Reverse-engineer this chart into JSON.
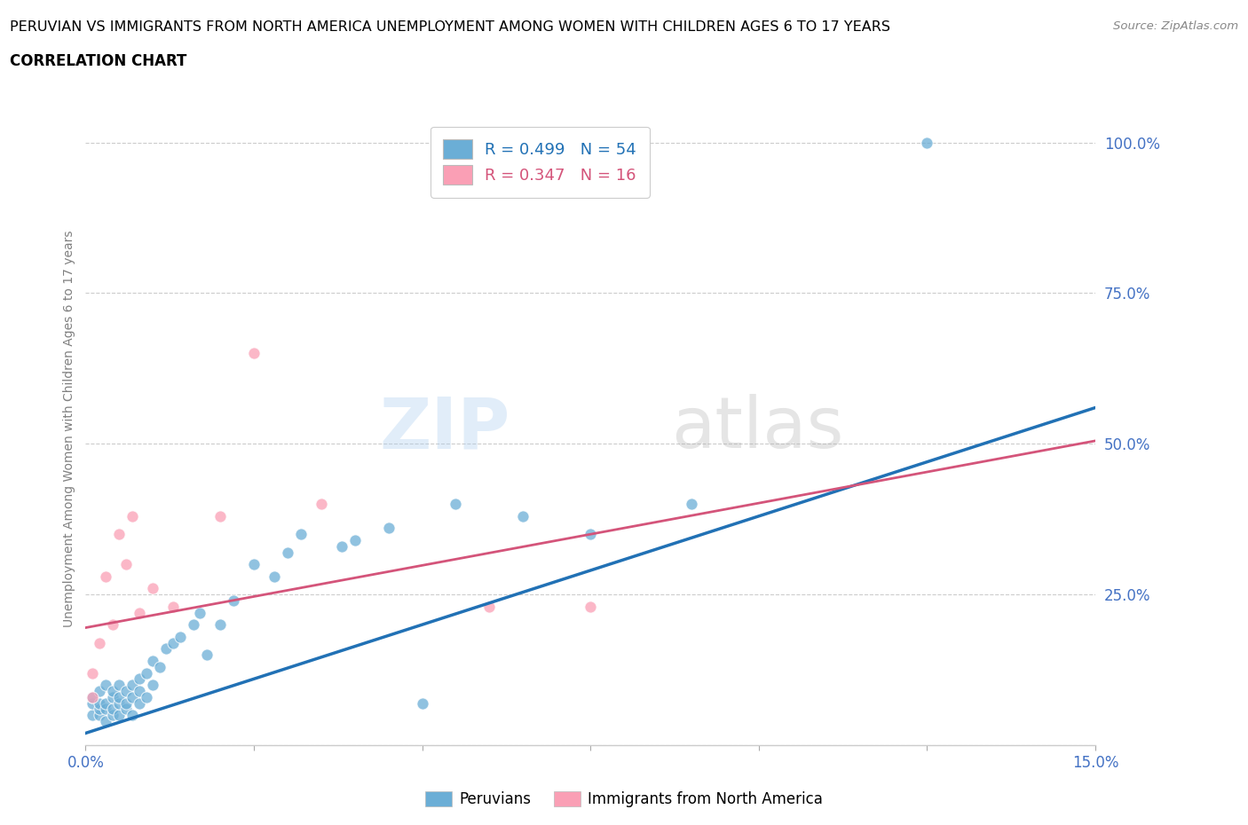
{
  "title_line1": "PERUVIAN VS IMMIGRANTS FROM NORTH AMERICA UNEMPLOYMENT AMONG WOMEN WITH CHILDREN AGES 6 TO 17 YEARS",
  "title_line2": "CORRELATION CHART",
  "source": "Source: ZipAtlas.com",
  "ylabel": "Unemployment Among Women with Children Ages 6 to 17 years",
  "xlim": [
    0.0,
    0.15
  ],
  "ylim": [
    0.0,
    1.05
  ],
  "xticks": [
    0.0,
    0.025,
    0.05,
    0.075,
    0.1,
    0.125,
    0.15
  ],
  "xtick_labels": [
    "0.0%",
    "",
    "",
    "",
    "",
    "",
    "15.0%"
  ],
  "yticks": [
    0.0,
    0.25,
    0.5,
    0.75,
    1.0
  ],
  "ytick_labels": [
    "",
    "25.0%",
    "50.0%",
    "75.0%",
    "100.0%"
  ],
  "blue_color": "#6baed6",
  "pink_color": "#fa9fb5",
  "blue_line_color": "#2171b5",
  "pink_line_color": "#d4547a",
  "r_blue": 0.499,
  "n_blue": 54,
  "r_pink": 0.347,
  "n_pink": 16,
  "watermark_zip": "ZIP",
  "watermark_atlas": "atlas",
  "legend_label_blue": "Peruvians",
  "legend_label_pink": "Immigrants from North America",
  "blue_line_x0": 0.0,
  "blue_line_y0": 0.02,
  "blue_line_x1": 0.15,
  "blue_line_y1": 0.56,
  "pink_line_x0": 0.0,
  "pink_line_y0": 0.195,
  "pink_line_x1": 0.15,
  "pink_line_y1": 0.505,
  "blue_scatter_x": [
    0.001,
    0.001,
    0.001,
    0.002,
    0.002,
    0.002,
    0.002,
    0.003,
    0.003,
    0.003,
    0.003,
    0.004,
    0.004,
    0.004,
    0.004,
    0.005,
    0.005,
    0.005,
    0.005,
    0.006,
    0.006,
    0.006,
    0.007,
    0.007,
    0.007,
    0.008,
    0.008,
    0.008,
    0.009,
    0.009,
    0.01,
    0.01,
    0.011,
    0.012,
    0.013,
    0.014,
    0.016,
    0.017,
    0.018,
    0.02,
    0.022,
    0.025,
    0.028,
    0.03,
    0.032,
    0.038,
    0.04,
    0.045,
    0.05,
    0.055,
    0.065,
    0.075,
    0.09,
    0.125
  ],
  "blue_scatter_y": [
    0.05,
    0.07,
    0.08,
    0.05,
    0.06,
    0.07,
    0.09,
    0.04,
    0.06,
    0.07,
    0.1,
    0.05,
    0.06,
    0.08,
    0.09,
    0.05,
    0.07,
    0.08,
    0.1,
    0.06,
    0.07,
    0.09,
    0.05,
    0.08,
    0.1,
    0.07,
    0.09,
    0.11,
    0.08,
    0.12,
    0.1,
    0.14,
    0.13,
    0.16,
    0.17,
    0.18,
    0.2,
    0.22,
    0.15,
    0.2,
    0.24,
    0.3,
    0.28,
    0.32,
    0.35,
    0.33,
    0.34,
    0.36,
    0.07,
    0.4,
    0.38,
    0.35,
    0.4,
    1.0
  ],
  "pink_scatter_x": [
    0.001,
    0.001,
    0.002,
    0.003,
    0.004,
    0.005,
    0.006,
    0.007,
    0.008,
    0.01,
    0.013,
    0.02,
    0.025,
    0.035,
    0.06,
    0.075
  ],
  "pink_scatter_y": [
    0.08,
    0.12,
    0.17,
    0.28,
    0.2,
    0.35,
    0.3,
    0.38,
    0.22,
    0.26,
    0.23,
    0.38,
    0.65,
    0.4,
    0.23,
    0.23
  ]
}
